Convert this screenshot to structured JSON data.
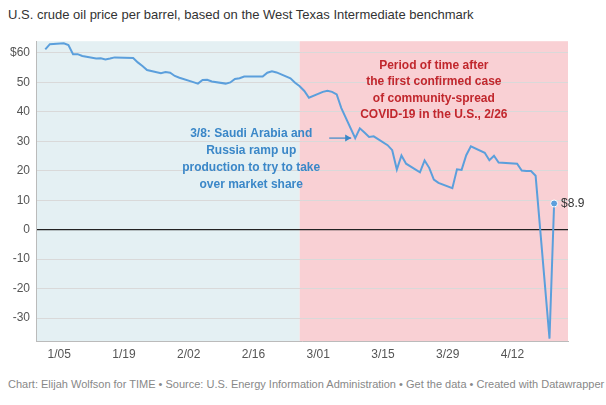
{
  "chart_data": {
    "type": "line",
    "title": "U.S. crude oil price per barrel, based on the West Texas Intermediate benchmark",
    "source_note": "Chart: Elijah Wolfson for TIME • Source: U.S. Energy Information Administration • Get the data • Created with Datawrapper",
    "x": [
      2,
      3,
      6,
      7,
      8,
      9,
      10,
      13,
      14,
      15,
      16,
      17,
      21,
      22,
      23,
      24,
      27,
      28,
      29,
      30,
      31,
      34,
      35,
      36,
      37,
      38,
      41,
      42,
      43,
      44,
      45,
      49,
      50,
      51,
      52,
      55,
      56,
      57,
      58,
      59,
      62,
      63,
      64,
      65,
      66,
      69,
      70,
      71,
      72,
      73,
      76,
      77,
      78,
      79,
      80,
      83,
      84,
      85,
      86,
      87,
      90,
      91,
      92,
      93,
      94,
      97,
      98,
      99,
      100,
      104,
      105,
      106,
      107,
      108,
      111,
      112
    ],
    "values": [
      61.2,
      63.0,
      63.3,
      62.7,
      59.6,
      59.6,
      59.0,
      58.1,
      58.2,
      57.8,
      58.1,
      58.5,
      58.3,
      56.8,
      55.6,
      54.2,
      53.1,
      53.5,
      53.3,
      52.2,
      51.6,
      50.1,
      49.6,
      50.8,
      50.9,
      50.3,
      49.6,
      50.0,
      51.2,
      51.4,
      52.0,
      52.0,
      53.3,
      53.8,
      53.4,
      51.4,
      49.9,
      48.7,
      47.1,
      44.8,
      46.8,
      47.2,
      46.8,
      45.9,
      41.3,
      31.1,
      34.4,
      33.0,
      31.5,
      31.7,
      28.7,
      27.0,
      20.4,
      25.2,
      22.4,
      19.5,
      23.5,
      21.0,
      17.0,
      15.9,
      14.1,
      20.5,
      20.3,
      25.3,
      28.3,
      26.1,
      23.6,
      25.1,
      22.8,
      22.4,
      20.1,
      19.9,
      19.9,
      18.3,
      -37.0,
      8.9
    ],
    "color": "#5b9fdc",
    "data_labels": true,
    "value_labels": [
      null,
      null,
      null,
      null,
      null,
      null,
      null,
      null,
      null,
      null,
      null,
      null,
      null,
      null,
      null,
      null,
      null,
      null,
      null,
      null,
      null,
      null,
      null,
      null,
      null,
      null,
      null,
      null,
      null,
      null,
      null,
      null,
      null,
      null,
      null,
      null,
      null,
      null,
      null,
      null,
      null,
      null,
      null,
      null,
      null,
      null,
      null,
      null,
      null,
      null,
      null,
      null,
      null,
      null,
      null,
      null,
      null,
      null,
      null,
      null,
      null,
      null,
      null,
      null,
      null,
      null,
      null,
      null,
      null,
      null,
      null,
      null,
      null,
      null,
      null,
      "$8.9"
    ],
    "xlim": [
      0,
      115
    ],
    "xticks": [
      {
        "value": 5,
        "label": "1/05"
      },
      {
        "value": 19,
        "label": "1/19"
      },
      {
        "value": 33,
        "label": "2/02"
      },
      {
        "value": 47,
        "label": "2/16"
      },
      {
        "value": 61,
        "label": "3/01"
      },
      {
        "value": 75,
        "label": "3/15"
      },
      {
        "value": 89,
        "label": "3/29"
      },
      {
        "value": 103,
        "label": "4/12"
      }
    ],
    "ylim": [
      -38,
      64
    ],
    "yticks": [
      {
        "value": 60,
        "label": "$60"
      },
      50,
      40,
      30,
      20,
      10,
      0,
      -10,
      -20,
      -30
    ],
    "grid": true,
    "regions": [
      {
        "from": 0,
        "to": 57,
        "color": "#e4f0f3"
      },
      {
        "from": 57,
        "to": 115,
        "color": "#f9d0d4",
        "text": "Period of time after\nthe first confirmed case\nof community-spread\nCOVID-19 in the U.S., 2/26"
      }
    ],
    "annotations": [
      {
        "x": 69,
        "y": 31.1,
        "text": "3/8: Saudi Arabia and\nRussia ramp up\nproduction to try to take\nover market share"
      }
    ]
  }
}
